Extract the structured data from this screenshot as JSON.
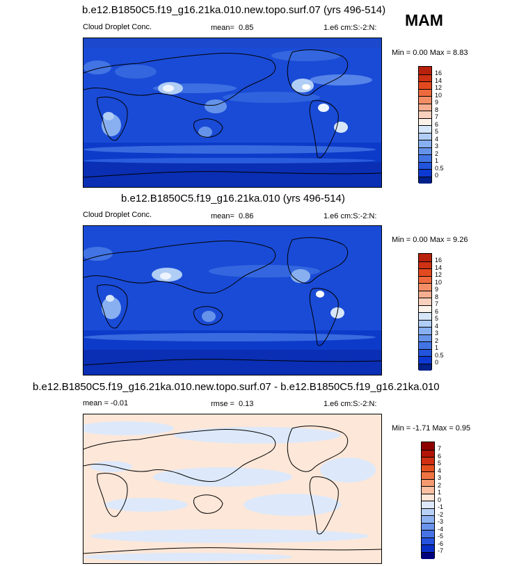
{
  "season_label": "MAM",
  "panels": [
    {
      "title": "b.e12.B1850C5.f19_g16.21ka.010.new.topo.surf.07 (yrs 496-514)",
      "left_label": "Cloud Droplet Conc.",
      "stat_label": "mean=",
      "stat_value": "0.85",
      "units": "1.e6 cm:S:-2:N:",
      "range_text": "Min =   0.00 Max =   8.83"
    },
    {
      "title": "b.e12.B1850C5.f19_g16.21ka.010 (yrs 496-514)",
      "left_label": "Cloud Droplet Conc.",
      "stat_label": "mean=",
      "stat_value": "0.86",
      "units": "1.e6 cm:S:-2:N:",
      "range_text": "Min =   0.00 Max =   9.26"
    },
    {
      "title": "b.e12.B1850C5.f19_g16.21ka.010.new.topo.surf.07 - b.e12.B1850C5.f19_g16.21ka.010",
      "left_label": "mean = -0.01",
      "stat_label": "rmse =",
      "stat_value": "0.13",
      "units": "1.e6 cm:S:-2:N:",
      "range_text": "Min =  -1.71 Max =   0.95"
    }
  ],
  "colorbars": {
    "abs": {
      "labels": [
        "16",
        "14",
        "12",
        "10",
        "9",
        "8",
        "7",
        "6",
        "5",
        "4",
        "3",
        "2",
        "1",
        "0.5",
        "0"
      ],
      "colors": [
        "#b8210c",
        "#cf3114",
        "#e3491f",
        "#ee6a3e",
        "#f28d66",
        "#f5ae90",
        "#f9d0bd",
        "#fdf2ea",
        "#d7e7f9",
        "#b0cdf5",
        "#88b0f0",
        "#6593ea",
        "#4274e4",
        "#2254dd",
        "#0d39d3",
        "#00218a"
      ]
    },
    "diff": {
      "labels": [
        "7",
        "6",
        "5",
        "4",
        "3",
        "2",
        "1",
        "0",
        "-1",
        "-2",
        "-3",
        "-4",
        "-5",
        "-6",
        "-7"
      ],
      "colors": [
        "#8e0000",
        "#b21407",
        "#cf2f12",
        "#e5501f",
        "#ef7442",
        "#f49a70",
        "#f9c0a4",
        "#fde7d8",
        "#dde9fa",
        "#b8d1f6",
        "#8fb3f1",
        "#6a93eb",
        "#4773e5",
        "#2552de",
        "#0a2fc7",
        "#00007f"
      ]
    }
  },
  "chart_data": [
    {
      "type": "heatmap",
      "title": "b.e12.B1850C5.f19_g16.21ka.010.new.topo.surf.07 (yrs 496-514)",
      "variable": "Cloud Droplet Conc.",
      "mean": 0.85,
      "min": 0.0,
      "max": 8.83,
      "units": "1.e6 cm:S:-2:N:",
      "season": "MAM",
      "contour_levels": [
        0,
        0.5,
        1,
        2,
        3,
        4,
        5,
        6,
        7,
        8,
        9,
        10,
        12,
        14,
        16
      ]
    },
    {
      "type": "heatmap",
      "title": "b.e12.B1850C5.f19_g16.21ka.010 (yrs 496-514)",
      "variable": "Cloud Droplet Conc.",
      "mean": 0.86,
      "min": 0.0,
      "max": 9.26,
      "units": "1.e6 cm:S:-2:N:",
      "season": "MAM",
      "contour_levels": [
        0,
        0.5,
        1,
        2,
        3,
        4,
        5,
        6,
        7,
        8,
        9,
        10,
        12,
        14,
        16
      ]
    },
    {
      "type": "heatmap",
      "title": "b.e12.B1850C5.f19_g16.21ka.010.new.topo.surf.07 - b.e12.B1850C5.f19_g16.21ka.010",
      "mean": -0.01,
      "rmse": 0.13,
      "min": -1.71,
      "max": 0.95,
      "units": "1.e6 cm:S:-2:N:",
      "season": "MAM",
      "contour_levels": [
        -7,
        -6,
        -5,
        -4,
        -3,
        -2,
        -1,
        0,
        1,
        2,
        3,
        4,
        5,
        6,
        7
      ]
    }
  ]
}
